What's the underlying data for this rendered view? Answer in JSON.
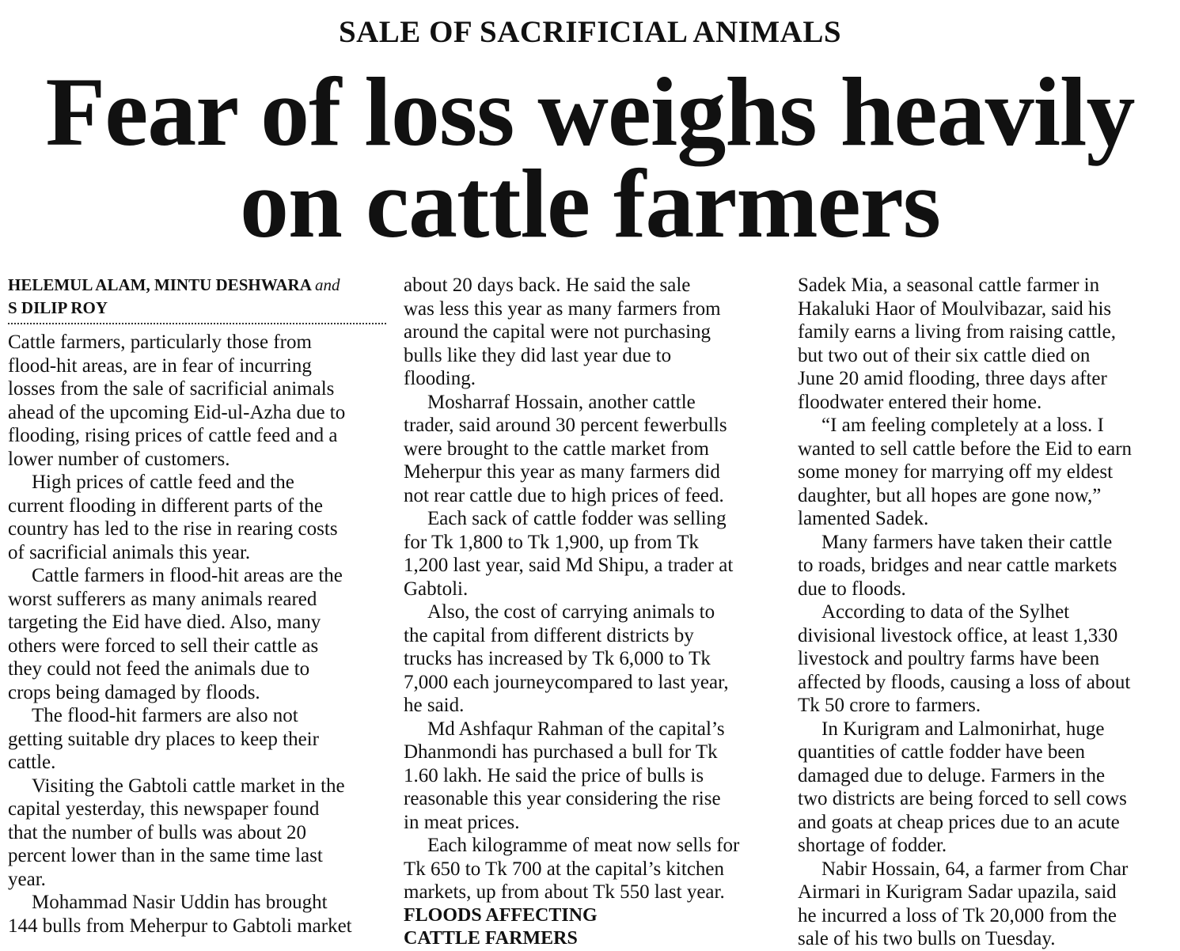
{
  "kicker": "SALE OF SACRIFICIAL ANIMALS",
  "headline": [
    "Fear of loss weighs heavily",
    "on cattle farmers"
  ],
  "byline": {
    "names1": "HELEMUL ALAM, MINTU DESHWARA",
    "and": "and",
    "names2": "S DILIP ROY"
  },
  "columns": [
    [
      {
        "indent": false,
        "lines": [
          "Cattle farmers, particularly those from",
          "flood-hit areas, are in fear of incurring",
          "losses from the sale of sacrificial animals",
          "ahead of the upcoming Eid-ul-Azha due to",
          "flooding, rising prices of cattle feed and a",
          "lower number of customers."
        ]
      },
      {
        "indent": true,
        "lines": [
          "High prices of cattle feed and the",
          "current flooding in different parts of the",
          "country has led to the rise in rearing costs",
          "of sacrificial animals this year."
        ]
      },
      {
        "indent": true,
        "lines": [
          "Cattle farmers in flood-hit areas are the",
          "worst sufferers as many animals reared",
          "targeting the Eid have died. Also, many",
          "others were forced to sell their cattle as",
          "they could not feed the animals due to",
          "crops being damaged by floods."
        ]
      },
      {
        "indent": true,
        "lines": [
          "The flood-hit farmers are also not",
          "getting suitable dry places to keep their",
          "cattle."
        ]
      },
      {
        "indent": true,
        "lines": [
          "Visiting the Gabtoli cattle market in the",
          "capital yesterday, this newspaper found",
          "that the number of bulls was about 20",
          "percent lower than in the same time last",
          "year."
        ]
      },
      {
        "indent": true,
        "lines": [
          "Mohammad Nasir Uddin has brought",
          "144 bulls from Meherpur to Gabtoli market"
        ]
      }
    ],
    [
      {
        "indent": false,
        "lines": [
          "about 20 days back. He said the sale",
          "was less this year as many farmers from",
          "around the capital were not purchasing",
          "bulls like they did last year due to",
          "flooding."
        ]
      },
      {
        "indent": true,
        "lines": [
          "Mosharraf Hossain, another cattle",
          "trader, said around 30 percent fewerbulls",
          "were brought to the cattle market from",
          "Meherpur this year as many farmers did",
          "not rear cattle due to high prices of feed."
        ]
      },
      {
        "indent": true,
        "lines": [
          "Each sack of cattle fodder was selling",
          "for Tk 1,800 to Tk 1,900, up from Tk",
          "1,200 last year, said Md Shipu, a trader at",
          "Gabtoli."
        ]
      },
      {
        "indent": true,
        "lines": [
          "Also, the cost of carrying animals to",
          "the capital from different districts by",
          "trucks has increased by Tk 6,000 to Tk",
          "7,000 each journeycompared to last year,",
          "he said."
        ]
      },
      {
        "indent": true,
        "lines": [
          "Md Ashfaqur Rahman of the capital’s",
          "Dhanmondi has purchased a bull for Tk",
          "1.60 lakh. He said the price of bulls is",
          "reasonable this year considering the rise",
          "in meat prices."
        ]
      },
      {
        "indent": true,
        "lines": [
          "Each kilogramme of meat now sells for",
          "Tk 650 to Tk 700 at the capital’s kitchen",
          "markets, up from about Tk 550 last year."
        ]
      },
      {
        "subhead": true,
        "lines": [
          "FLOODS AFFECTING",
          "CATTLE FARMERS"
        ]
      }
    ],
    [
      {
        "indent": false,
        "lines": [
          "Sadek Mia, a seasonal cattle farmer in",
          "Hakaluki Haor of Moulvibazar, said his",
          "family earns a living from raising cattle,",
          "but two out of their six cattle died on",
          "June 20 amid flooding, three days after",
          "floodwater entered their home."
        ]
      },
      {
        "indent": true,
        "lines": [
          "“I am feeling completely at a loss. I",
          "wanted to sell cattle before the Eid to earn",
          "some money for marrying off my eldest",
          "daughter, but all hopes are gone now,”",
          "lamented Sadek."
        ]
      },
      {
        "indent": true,
        "lines": [
          "Many farmers have taken their cattle",
          "to roads, bridges and near cattle markets",
          "due to floods."
        ]
      },
      {
        "indent": true,
        "lines": [
          "According to data of the Sylhet",
          "divisional livestock office, at least 1,330",
          "livestock and poultry farms have been",
          "affected by floods, causing a loss of about",
          "Tk 50 crore to farmers."
        ]
      },
      {
        "indent": true,
        "lines": [
          "In Kurigram and Lalmonirhat, huge",
          "quantities of cattle fodder have been",
          "damaged due to deluge. Farmers in the",
          "two districts are being forced to sell cows",
          "and goats at cheap prices due to an acute",
          "shortage of fodder."
        ]
      },
      {
        "indent": true,
        "lines": [
          "Nabir Hossain, 64, a farmer from Char",
          "Airmari in Kurigram Sadar upazila, said",
          "he incurred a loss of Tk 20,000 from the",
          "sale of his two bulls on Tuesday."
        ]
      }
    ]
  ]
}
